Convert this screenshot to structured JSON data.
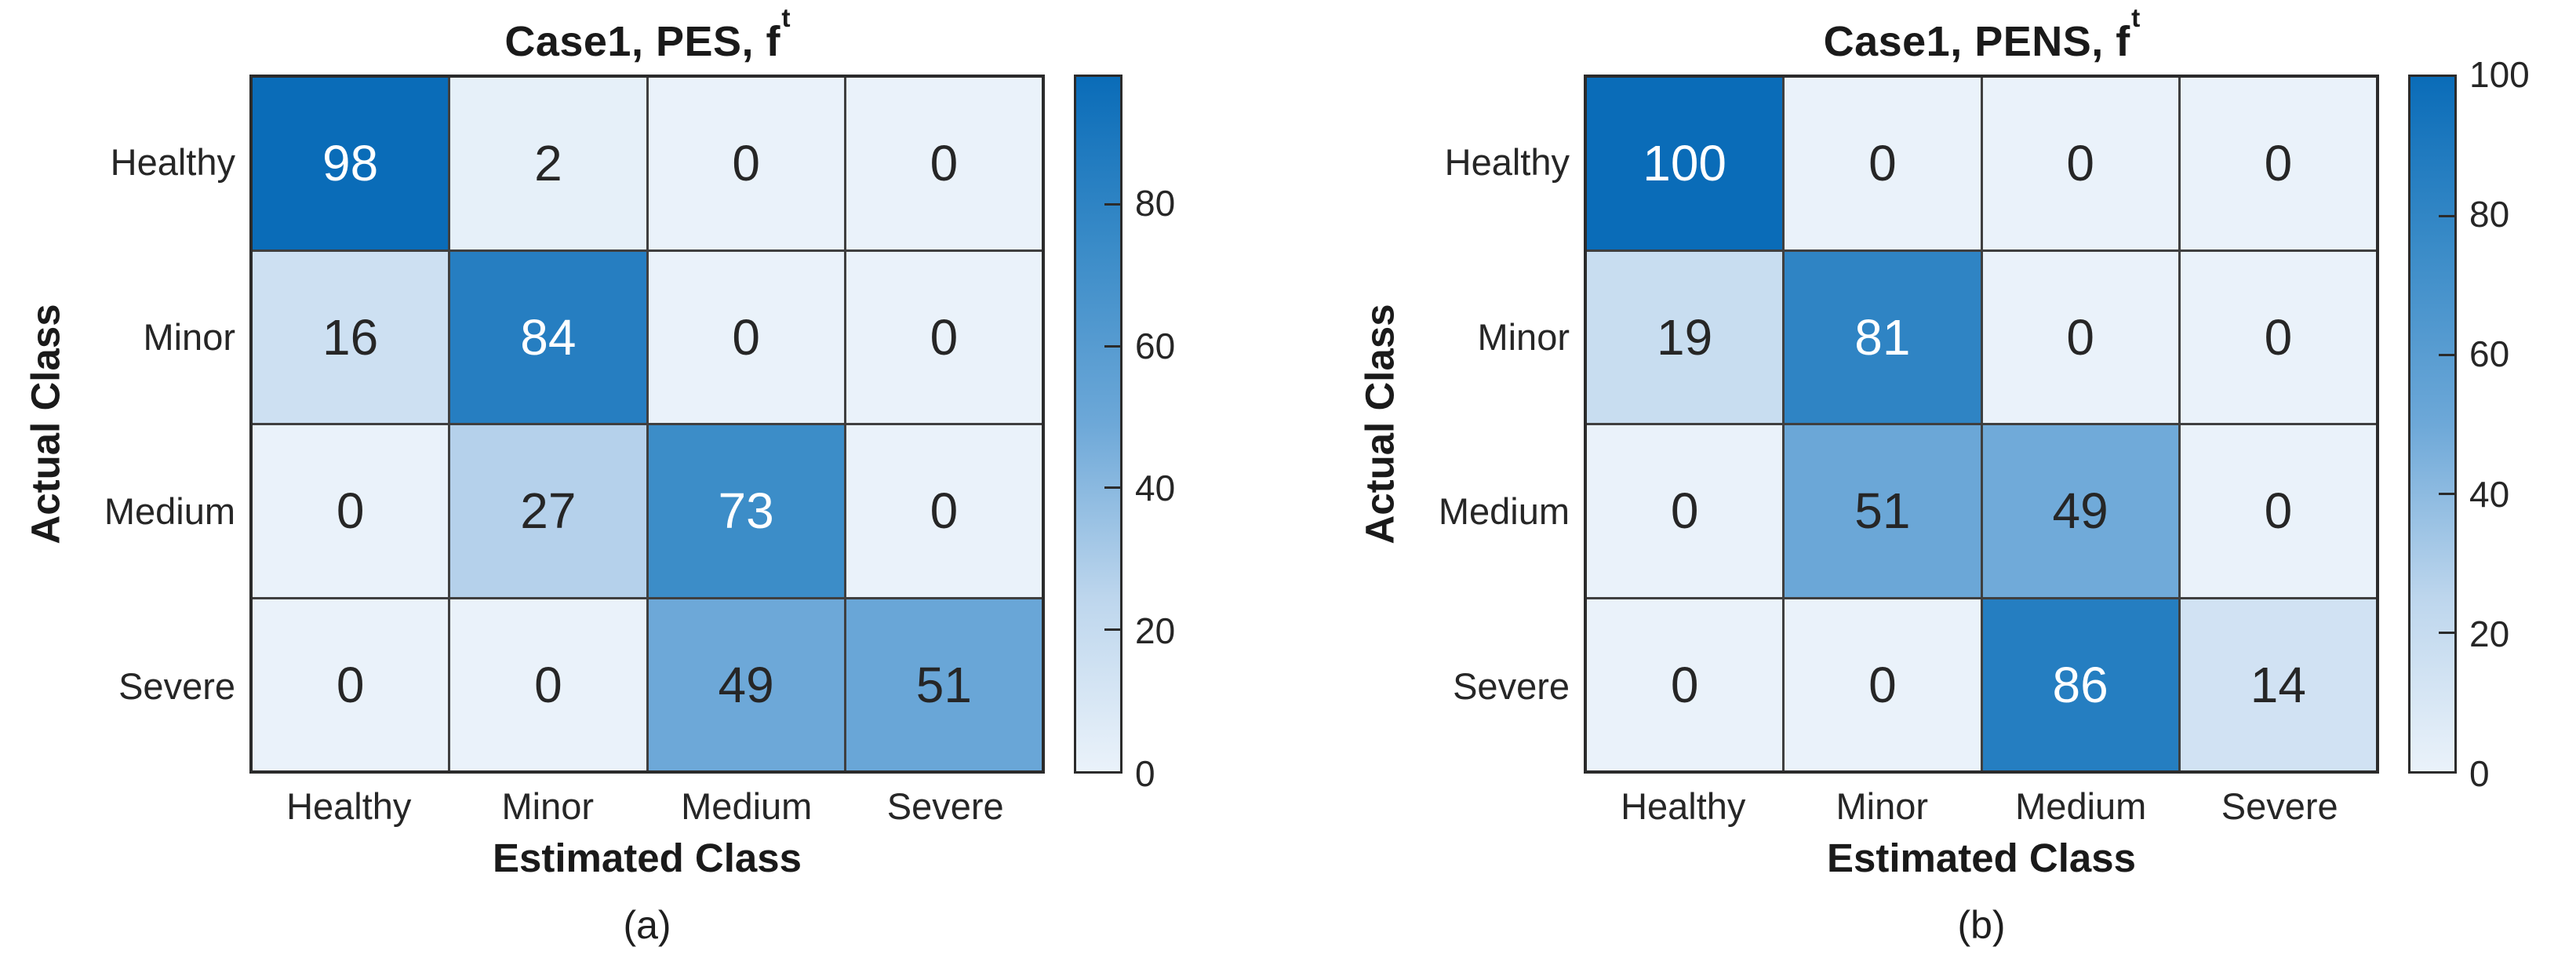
{
  "ui": {
    "background": "#ffffff",
    "text_color": "#262626",
    "label_color": "#1a1a1a",
    "grid_line_color": "#3f3f3f",
    "box_border_color": "#2b2b2b",
    "cell_text_light": "#ffffff",
    "white_text_threshold_pct": 60,
    "colormap_anchors": [
      {
        "v": 0,
        "color": "#eaf2fa"
      },
      {
        "v": 25,
        "color": "#bdd6ed"
      },
      {
        "v": 50,
        "color": "#6da8d8"
      },
      {
        "v": 75,
        "color": "#3b8cc8"
      },
      {
        "v": 100,
        "color": "#0a6cb8"
      }
    ]
  },
  "panels": [
    {
      "title_prefix": "Case1, PES, f",
      "title_sup": "t"
    },
    {
      "title_prefix": "Case1, PENS, f",
      "title_sup": "t"
    }
  ],
  "chart_data": [
    {
      "type": "heatmap",
      "title": "Case1, PES, f^t",
      "caption": "(a)",
      "xlabel": "Estimated Class",
      "ylabel": "Actual Class",
      "x_categories": [
        "Healthy",
        "Minor",
        "Medium",
        "Severe"
      ],
      "y_categories": [
        "Healthy",
        "Minor",
        "Medium",
        "Severe"
      ],
      "values": [
        [
          98,
          2,
          0,
          0
        ],
        [
          16,
          84,
          0,
          0
        ],
        [
          0,
          27,
          73,
          0
        ],
        [
          0,
          0,
          49,
          51
        ]
      ],
      "vmin": 0,
      "vmax": 98,
      "colorbar_ticks": [
        0,
        20,
        40,
        60,
        80
      ],
      "colorbar_position": "right",
      "grid": true
    },
    {
      "type": "heatmap",
      "title": "Case1, PENS, f^t",
      "caption": "(b)",
      "xlabel": "Estimated Class",
      "ylabel": "Actual Class",
      "x_categories": [
        "Healthy",
        "Minor",
        "Medium",
        "Severe"
      ],
      "y_categories": [
        "Healthy",
        "Minor",
        "Medium",
        "Severe"
      ],
      "values": [
        [
          100,
          0,
          0,
          0
        ],
        [
          19,
          81,
          0,
          0
        ],
        [
          0,
          51,
          49,
          0
        ],
        [
          0,
          0,
          86,
          14
        ]
      ],
      "vmin": 0,
      "vmax": 100,
      "colorbar_ticks": [
        0,
        20,
        40,
        60,
        80,
        100
      ],
      "colorbar_position": "right",
      "grid": true
    }
  ]
}
